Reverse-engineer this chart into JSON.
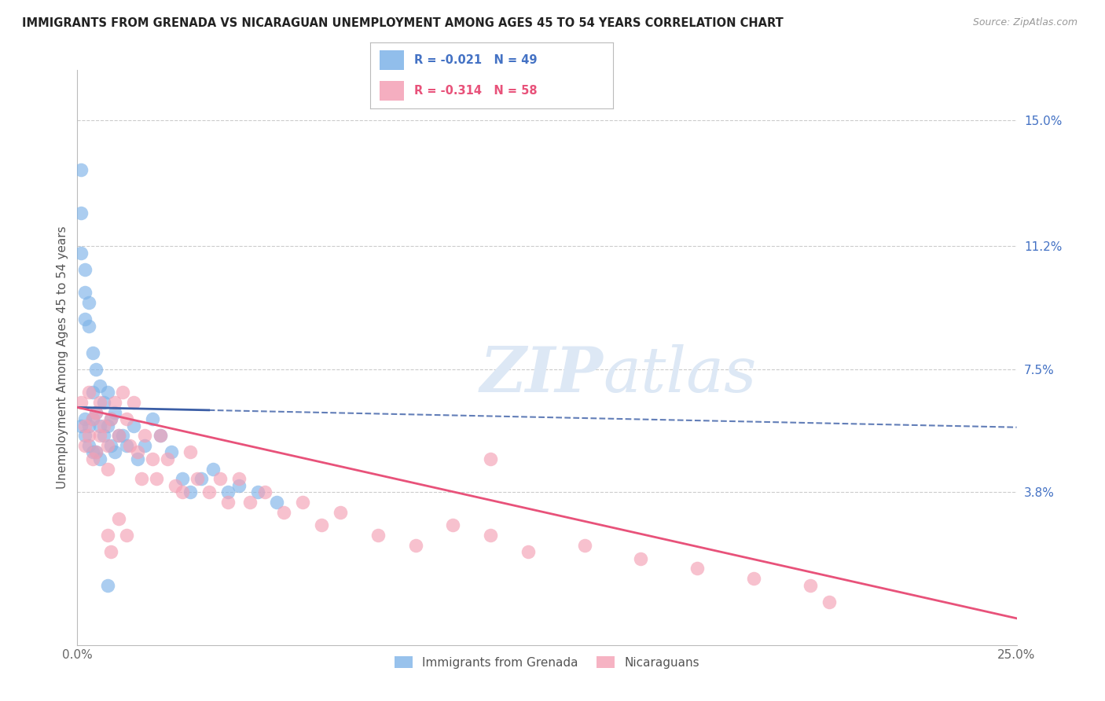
{
  "title": "IMMIGRANTS FROM GRENADA VS NICARAGUAN UNEMPLOYMENT AMONG AGES 45 TO 54 YEARS CORRELATION CHART",
  "source": "Source: ZipAtlas.com",
  "ylabel": "Unemployment Among Ages 45 to 54 years",
  "right_ytick_values": [
    0.15,
    0.112,
    0.075,
    0.038
  ],
  "right_ytick_labels": [
    "15.0%",
    "11.2%",
    "7.5%",
    "3.8%"
  ],
  "xlim": [
    0.0,
    0.25
  ],
  "ylim": [
    -0.008,
    0.165
  ],
  "legend_label1": "Immigrants from Grenada",
  "legend_label2": "Nicaraguans",
  "r1": "-0.021",
  "n1": "49",
  "r2": "-0.314",
  "n2": "58",
  "color1": "#7EB3E8",
  "color2": "#F4A0B5",
  "line1_color": "#3B5EA6",
  "line2_color": "#E8527A",
  "watermark_color": "#DDE8F5",
  "grid_color": "#CCCCCC",
  "background_color": "#FFFFFF",
  "blue_x": [
    0.001,
    0.001,
    0.001,
    0.001,
    0.002,
    0.002,
    0.002,
    0.002,
    0.002,
    0.003,
    0.003,
    0.003,
    0.003,
    0.004,
    0.004,
    0.004,
    0.004,
    0.005,
    0.005,
    0.005,
    0.006,
    0.006,
    0.006,
    0.007,
    0.007,
    0.008,
    0.008,
    0.009,
    0.009,
    0.01,
    0.01,
    0.011,
    0.012,
    0.013,
    0.015,
    0.016,
    0.018,
    0.02,
    0.022,
    0.025,
    0.028,
    0.03,
    0.033,
    0.036,
    0.04,
    0.043,
    0.048,
    0.053,
    0.008
  ],
  "blue_y": [
    0.135,
    0.122,
    0.11,
    0.058,
    0.105,
    0.098,
    0.09,
    0.06,
    0.055,
    0.095,
    0.088,
    0.058,
    0.052,
    0.08,
    0.068,
    0.06,
    0.05,
    0.075,
    0.062,
    0.05,
    0.07,
    0.058,
    0.048,
    0.065,
    0.055,
    0.068,
    0.058,
    0.06,
    0.052,
    0.062,
    0.05,
    0.055,
    0.055,
    0.052,
    0.058,
    0.048,
    0.052,
    0.06,
    0.055,
    0.05,
    0.042,
    0.038,
    0.042,
    0.045,
    0.038,
    0.04,
    0.038,
    0.035,
    0.01
  ],
  "pink_x": [
    0.001,
    0.002,
    0.002,
    0.003,
    0.003,
    0.004,
    0.004,
    0.005,
    0.005,
    0.006,
    0.006,
    0.007,
    0.008,
    0.008,
    0.009,
    0.01,
    0.011,
    0.012,
    0.013,
    0.014,
    0.015,
    0.016,
    0.017,
    0.018,
    0.02,
    0.021,
    0.022,
    0.024,
    0.026,
    0.028,
    0.03,
    0.032,
    0.035,
    0.038,
    0.04,
    0.043,
    0.046,
    0.05,
    0.055,
    0.06,
    0.065,
    0.07,
    0.08,
    0.09,
    0.1,
    0.11,
    0.12,
    0.135,
    0.15,
    0.165,
    0.18,
    0.195,
    0.008,
    0.009,
    0.011,
    0.013,
    0.11,
    0.2
  ],
  "pink_y": [
    0.065,
    0.058,
    0.052,
    0.068,
    0.055,
    0.06,
    0.048,
    0.062,
    0.05,
    0.065,
    0.055,
    0.058,
    0.052,
    0.045,
    0.06,
    0.065,
    0.055,
    0.068,
    0.06,
    0.052,
    0.065,
    0.05,
    0.042,
    0.055,
    0.048,
    0.042,
    0.055,
    0.048,
    0.04,
    0.038,
    0.05,
    0.042,
    0.038,
    0.042,
    0.035,
    0.042,
    0.035,
    0.038,
    0.032,
    0.035,
    0.028,
    0.032,
    0.025,
    0.022,
    0.028,
    0.025,
    0.02,
    0.022,
    0.018,
    0.015,
    0.012,
    0.01,
    0.025,
    0.02,
    0.03,
    0.025,
    0.048,
    0.005
  ],
  "line1_x0": 0.0,
  "line1_y0": 0.0635,
  "line1_x1": 0.25,
  "line1_y1": 0.0575,
  "line2_x0": 0.0,
  "line2_y0": 0.0635,
  "line2_x1": 0.25,
  "line2_y1": 0.0,
  "line1_solid_end": 0.035,
  "line2_solid_end": 0.25
}
